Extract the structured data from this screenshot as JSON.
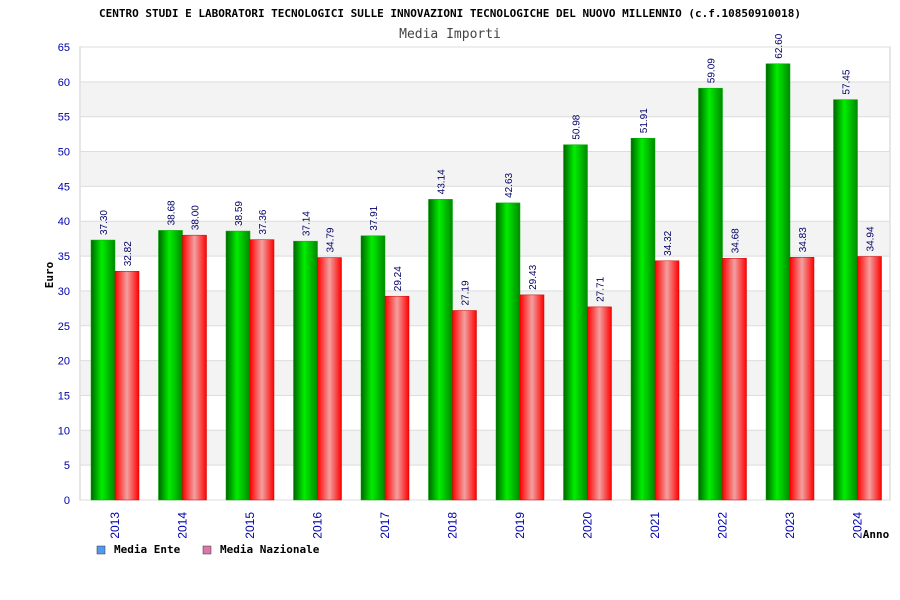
{
  "chart_data": {
    "type": "bar",
    "title": "CENTRO STUDI E LABORATORI TECNOLOGICI SULLE INNOVAZIONI TECNOLOGICHE DEL NUOVO MILLENNIO (c.f.10850910018)",
    "subtitle": "Media Importi",
    "ylabel": "Euro",
    "xlabel": "Anno",
    "ylim": [
      0,
      65
    ],
    "ytick_step": 5,
    "grid": true,
    "legend_position": "bottom-left",
    "categories": [
      "2013",
      "2014",
      "2015",
      "2016",
      "2017",
      "2018",
      "2019",
      "2020",
      "2021",
      "2022",
      "2023",
      "2024"
    ],
    "series": [
      {
        "name": "Media Ente",
        "color": "#00bb00",
        "legend_color": "#5599ee",
        "values": [
          37.3,
          38.68,
          38.59,
          37.14,
          37.91,
          43.14,
          42.63,
          50.98,
          51.91,
          59.09,
          62.6,
          57.45
        ],
        "labels": [
          "37.30",
          "38.68",
          "38.59",
          "37.14",
          "37.91",
          "43.14",
          "42.63",
          "50.98",
          "51.91",
          "59.09",
          "62.60",
          "57.45"
        ]
      },
      {
        "name": "Media Nazionale",
        "color": "#ee0000",
        "legend_color": "#dd77aa",
        "values": [
          32.82,
          38.0,
          37.36,
          34.79,
          29.24,
          27.19,
          29.43,
          27.71,
          34.32,
          34.68,
          34.83,
          34.94
        ],
        "labels": [
          "32.82",
          "38.00",
          "37.36",
          "34.79",
          "29.24",
          "27.19",
          "29.43",
          "27.71",
          "34.32",
          "34.68",
          "34.83",
          "34.94"
        ]
      }
    ]
  }
}
